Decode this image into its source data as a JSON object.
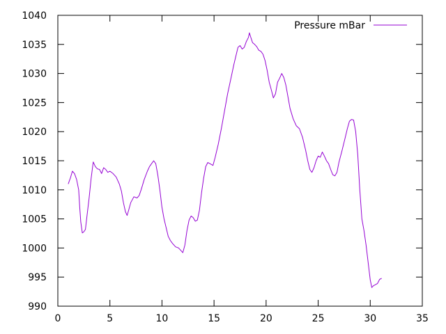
{
  "chart_data": {
    "type": "line",
    "title": "",
    "xlabel": "",
    "ylabel": "",
    "xlim": [
      0,
      35
    ],
    "ylim": [
      990,
      1040
    ],
    "xticks": [
      0,
      5,
      10,
      15,
      20,
      25,
      30,
      35
    ],
    "yticks": [
      990,
      995,
      1000,
      1005,
      1010,
      1015,
      1020,
      1025,
      1030,
      1035,
      1040
    ],
    "grid": false,
    "legend": "top-right",
    "series": [
      {
        "name": "Pressure mBar",
        "color": "#9400d3",
        "points": [
          [
            1.0,
            1011.0
          ],
          [
            1.2,
            1012.0
          ],
          [
            1.4,
            1013.2
          ],
          [
            1.6,
            1012.8
          ],
          [
            1.8,
            1011.8
          ],
          [
            2.0,
            1010.0
          ],
          [
            2.1,
            1007.0
          ],
          [
            2.2,
            1004.5
          ],
          [
            2.35,
            1002.6
          ],
          [
            2.5,
            1002.8
          ],
          [
            2.65,
            1003.2
          ],
          [
            2.8,
            1005.5
          ],
          [
            3.0,
            1008.5
          ],
          [
            3.2,
            1012.0
          ],
          [
            3.4,
            1014.8
          ],
          [
            3.6,
            1014.0
          ],
          [
            3.8,
            1013.6
          ],
          [
            4.0,
            1013.5
          ],
          [
            4.2,
            1012.8
          ],
          [
            4.4,
            1013.8
          ],
          [
            4.6,
            1013.5
          ],
          [
            4.8,
            1013.0
          ],
          [
            5.0,
            1013.2
          ],
          [
            5.3,
            1012.8
          ],
          [
            5.6,
            1012.2
          ],
          [
            5.9,
            1011.0
          ],
          [
            6.1,
            1009.8
          ],
          [
            6.3,
            1007.8
          ],
          [
            6.5,
            1006.2
          ],
          [
            6.65,
            1005.6
          ],
          [
            6.8,
            1006.5
          ],
          [
            7.0,
            1007.8
          ],
          [
            7.3,
            1008.8
          ],
          [
            7.6,
            1008.6
          ],
          [
            7.8,
            1009.0
          ],
          [
            8.0,
            1010.0
          ],
          [
            8.3,
            1011.8
          ],
          [
            8.6,
            1013.2
          ],
          [
            8.8,
            1014.0
          ],
          [
            9.0,
            1014.5
          ],
          [
            9.2,
            1015.0
          ],
          [
            9.4,
            1014.5
          ],
          [
            9.6,
            1012.5
          ],
          [
            9.8,
            1010.0
          ],
          [
            10.0,
            1007.0
          ],
          [
            10.2,
            1005.0
          ],
          [
            10.4,
            1003.5
          ],
          [
            10.6,
            1002.0
          ],
          [
            10.8,
            1001.3
          ],
          [
            11.0,
            1000.8
          ],
          [
            11.3,
            1000.2
          ],
          [
            11.6,
            1000.0
          ],
          [
            11.8,
            999.6
          ],
          [
            12.0,
            999.2
          ],
          [
            12.2,
            1000.5
          ],
          [
            12.4,
            1003.0
          ],
          [
            12.6,
            1004.8
          ],
          [
            12.8,
            1005.5
          ],
          [
            13.0,
            1005.2
          ],
          [
            13.2,
            1004.6
          ],
          [
            13.4,
            1004.8
          ],
          [
            13.6,
            1006.5
          ],
          [
            13.8,
            1009.5
          ],
          [
            14.0,
            1012.0
          ],
          [
            14.2,
            1014.0
          ],
          [
            14.4,
            1014.7
          ],
          [
            14.6,
            1014.5
          ],
          [
            14.9,
            1014.2
          ],
          [
            15.1,
            1015.5
          ],
          [
            15.4,
            1017.8
          ],
          [
            15.7,
            1020.5
          ],
          [
            16.0,
            1023.5
          ],
          [
            16.3,
            1026.5
          ],
          [
            16.6,
            1029.0
          ],
          [
            16.9,
            1031.5
          ],
          [
            17.1,
            1033.0
          ],
          [
            17.3,
            1034.5
          ],
          [
            17.5,
            1034.8
          ],
          [
            17.7,
            1034.2
          ],
          [
            17.9,
            1034.5
          ],
          [
            18.1,
            1035.5
          ],
          [
            18.3,
            1036.2
          ],
          [
            18.4,
            1037.0
          ],
          [
            18.5,
            1036.4
          ],
          [
            18.7,
            1035.3
          ],
          [
            18.9,
            1035.0
          ],
          [
            19.1,
            1034.6
          ],
          [
            19.3,
            1034.0
          ],
          [
            19.5,
            1033.8
          ],
          [
            19.7,
            1033.3
          ],
          [
            19.9,
            1032.2
          ],
          [
            20.1,
            1030.5
          ],
          [
            20.3,
            1028.5
          ],
          [
            20.5,
            1027.2
          ],
          [
            20.7,
            1025.8
          ],
          [
            20.9,
            1026.5
          ],
          [
            21.1,
            1028.5
          ],
          [
            21.3,
            1029.2
          ],
          [
            21.5,
            1030.0
          ],
          [
            21.7,
            1029.3
          ],
          [
            21.9,
            1028.0
          ],
          [
            22.1,
            1026.0
          ],
          [
            22.3,
            1024.0
          ],
          [
            22.6,
            1022.2
          ],
          [
            22.9,
            1021.0
          ],
          [
            23.2,
            1020.5
          ],
          [
            23.5,
            1019.0
          ],
          [
            23.8,
            1016.8
          ],
          [
            24.0,
            1015.0
          ],
          [
            24.2,
            1013.5
          ],
          [
            24.4,
            1013.0
          ],
          [
            24.6,
            1013.8
          ],
          [
            24.8,
            1015.0
          ],
          [
            25.0,
            1015.8
          ],
          [
            25.2,
            1015.6
          ],
          [
            25.4,
            1016.5
          ],
          [
            25.6,
            1015.8
          ],
          [
            25.8,
            1015.0
          ],
          [
            26.0,
            1014.5
          ],
          [
            26.2,
            1013.5
          ],
          [
            26.4,
            1012.6
          ],
          [
            26.6,
            1012.4
          ],
          [
            26.8,
            1013.0
          ],
          [
            27.0,
            1014.8
          ],
          [
            27.3,
            1016.8
          ],
          [
            27.6,
            1019.0
          ],
          [
            27.8,
            1020.5
          ],
          [
            28.0,
            1021.8
          ],
          [
            28.2,
            1022.1
          ],
          [
            28.4,
            1022.0
          ],
          [
            28.6,
            1020.0
          ],
          [
            28.8,
            1016.0
          ],
          [
            29.0,
            1010.0
          ],
          [
            29.2,
            1005.0
          ],
          [
            29.4,
            1003.0
          ],
          [
            29.6,
            1000.5
          ],
          [
            29.8,
            997.5
          ],
          [
            30.0,
            994.5
          ],
          [
            30.15,
            993.2
          ],
          [
            30.3,
            993.5
          ],
          [
            30.5,
            993.7
          ],
          [
            30.7,
            993.9
          ],
          [
            30.9,
            994.6
          ],
          [
            31.1,
            994.8
          ]
        ]
      }
    ]
  }
}
